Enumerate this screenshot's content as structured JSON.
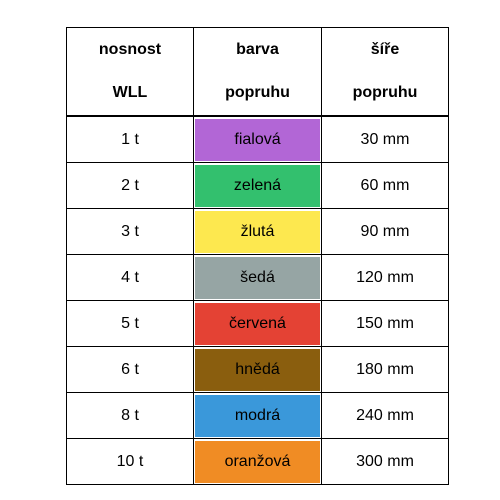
{
  "header": {
    "col1": [
      "nosnost",
      "WLL"
    ],
    "col2": [
      "barva",
      "popruhu"
    ],
    "col3": [
      "šíře",
      "popruhu"
    ]
  },
  "rows": [
    {
      "capacity": "1 t",
      "color_name": "fialová",
      "color": "#b266d6",
      "width": "30 mm"
    },
    {
      "capacity": "2 t",
      "color_name": "zelená",
      "color": "#33c06e",
      "width": "60 mm"
    },
    {
      "capacity": "3 t",
      "color_name": "žlutá",
      "color": "#fde84f",
      "width": "90 mm"
    },
    {
      "capacity": "4 t",
      "color_name": "šedá",
      "color": "#96a5a4",
      "width": "120 mm"
    },
    {
      "capacity": "5 t",
      "color_name": "červená",
      "color": "#e44234",
      "width": "150 mm"
    },
    {
      "capacity": "6 t",
      "color_name": "hnědá",
      "color": "#8a5e0e",
      "width": "180 mm"
    },
    {
      "capacity": "8 t",
      "color_name": "modrá",
      "color": "#3a98da",
      "width": "240 mm"
    },
    {
      "capacity": "10 t",
      "color_name": "oranžová",
      "color": "#f08c24",
      "width": "300 mm"
    }
  ]
}
